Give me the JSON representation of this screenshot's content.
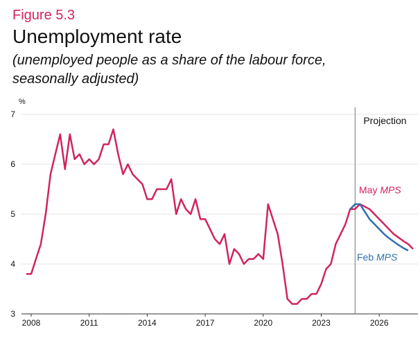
{
  "chart_data": {
    "type": "line",
    "figure_label": "Figure 5.3",
    "title": "Unemployment rate",
    "subtitle": [
      "(unemployed people as a share of the labour force,",
      "seasonally adjusted)"
    ],
    "y_unit": "%",
    "annotation": "Projection",
    "projection_start": 2024.75,
    "x": [
      2007.75,
      2008,
      2008.25,
      2008.5,
      2008.75,
      2009,
      2009.25,
      2009.5,
      2009.75,
      2010,
      2010.25,
      2010.5,
      2010.75,
      2011,
      2011.25,
      2011.5,
      2011.75,
      2012,
      2012.25,
      2012.5,
      2012.75,
      2013,
      2013.25,
      2013.5,
      2013.75,
      2014,
      2014.25,
      2014.5,
      2014.75,
      2015,
      2015.25,
      2015.5,
      2015.75,
      2016,
      2016.25,
      2016.5,
      2016.75,
      2017,
      2017.25,
      2017.5,
      2017.75,
      2018,
      2018.25,
      2018.5,
      2018.75,
      2019,
      2019.25,
      2019.5,
      2019.75,
      2020,
      2020.25,
      2020.5,
      2020.75,
      2021,
      2021.25,
      2021.5,
      2021.75,
      2022,
      2022.25,
      2022.5,
      2022.75,
      2023,
      2023.25,
      2023.5,
      2023.75,
      2024,
      2024.25,
      2024.5,
      2024.75,
      2025,
      2025.25,
      2025.5,
      2025.75,
      2026,
      2026.25,
      2026.5,
      2026.75,
      2027,
      2027.25,
      2027.5,
      2027.75
    ],
    "series": [
      {
        "name": "May MPS",
        "color": "#d0245e",
        "values": [
          3.8,
          3.8,
          4.1,
          4.4,
          5.0,
          5.8,
          6.2,
          6.6,
          5.9,
          6.6,
          6.1,
          6.2,
          6.0,
          6.1,
          6.0,
          6.1,
          6.4,
          6.4,
          6.7,
          6.2,
          5.8,
          6.0,
          5.8,
          5.7,
          5.6,
          5.3,
          5.3,
          5.5,
          5.5,
          5.5,
          5.7,
          5.0,
          5.3,
          5.1,
          5.0,
          5.3,
          4.9,
          4.9,
          4.7,
          4.5,
          4.4,
          4.6,
          4.0,
          4.3,
          4.2,
          4.0,
          4.1,
          4.1,
          4.2,
          4.1,
          5.2,
          4.9,
          4.6,
          4.0,
          3.3,
          3.2,
          3.2,
          3.3,
          3.3,
          3.4,
          3.4,
          3.6,
          3.9,
          4.0,
          4.4,
          4.6,
          4.8,
          5.1,
          5.1,
          5.2,
          5.15,
          5.1,
          5.0,
          4.9,
          4.8,
          4.7,
          4.6,
          4.53,
          4.46,
          4.4,
          4.3
        ]
      },
      {
        "name": "Feb MPS",
        "color": "#2f6fb0",
        "values": [
          null,
          null,
          null,
          null,
          null,
          null,
          null,
          null,
          null,
          null,
          null,
          null,
          null,
          null,
          null,
          null,
          null,
          null,
          null,
          null,
          null,
          null,
          null,
          null,
          null,
          null,
          null,
          null,
          null,
          null,
          null,
          null,
          null,
          null,
          null,
          null,
          null,
          null,
          null,
          null,
          null,
          null,
          null,
          null,
          null,
          null,
          null,
          null,
          null,
          null,
          null,
          null,
          null,
          null,
          null,
          null,
          null,
          null,
          null,
          null,
          null,
          null,
          null,
          null,
          null,
          null,
          null,
          5.1,
          5.2,
          5.2,
          5.05,
          4.9,
          4.8,
          4.7,
          4.6,
          4.52,
          4.45,
          4.38,
          4.32,
          4.27,
          null
        ]
      }
    ],
    "xlim": [
      2007.5,
      2028
    ],
    "xticks": [
      2008,
      2011,
      2014,
      2017,
      2020,
      2023,
      2026
    ],
    "ylim": [
      3,
      7
    ],
    "yticks": [
      3,
      4,
      5,
      6,
      7
    ],
    "grid": true
  }
}
